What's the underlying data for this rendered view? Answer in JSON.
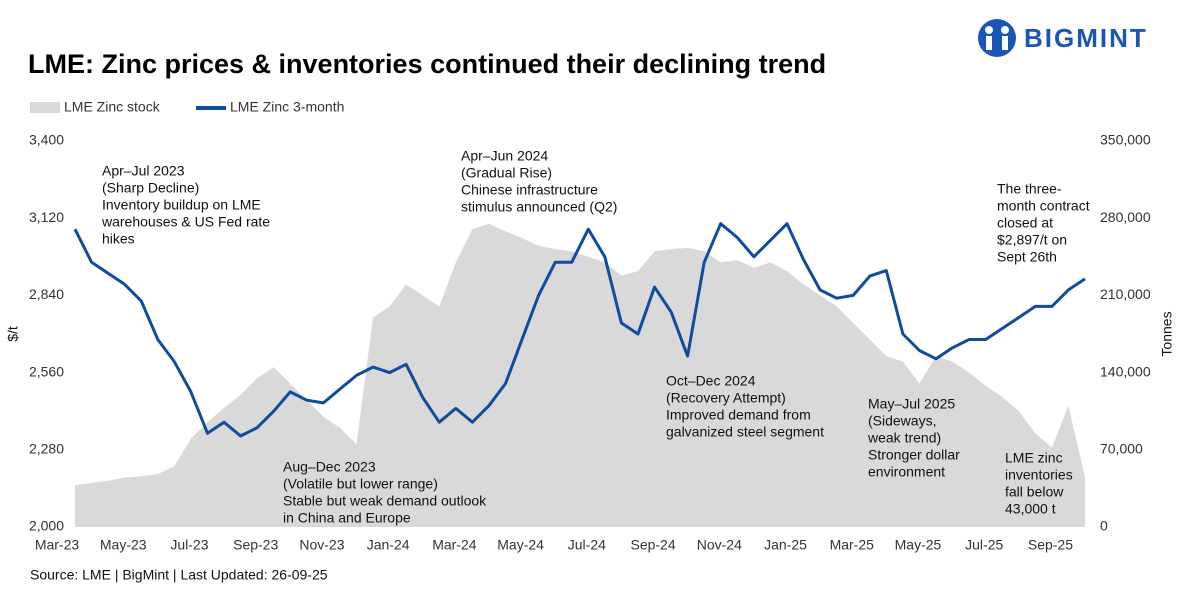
{
  "logo": "BIGMINT",
  "chart_data": {
    "type": "line",
    "title": "LME: Zinc prices & inventories continued their declining trend",
    "source": "Source: LME | BigMint | Last Updated: 26-09-25",
    "y_label": "$/t",
    "y2_label": "Tonnes",
    "categories": [
      "Mar-23",
      null,
      null,
      null,
      "May-23",
      null,
      null,
      null,
      "Jul-23",
      null,
      null,
      null,
      "Sep-23",
      null,
      null,
      null,
      "Nov-23",
      null,
      null,
      null,
      "Jan-24",
      null,
      null,
      null,
      "Mar-24",
      null,
      null,
      null,
      "May-24",
      null,
      null,
      null,
      "Jul-24",
      null,
      null,
      null,
      "Sep-24",
      null,
      null,
      null,
      "Nov-24",
      null,
      null,
      null,
      "Jan-25",
      null,
      null,
      null,
      "Mar-25",
      null,
      null,
      null,
      "May-25",
      null,
      null,
      null,
      "Jul-25",
      null,
      null,
      null,
      "Sep-25",
      null
    ],
    "series": [
      {
        "name": "LME Zinc stock",
        "type": "area",
        "axis": "y2",
        "color": "#d9d9d9",
        "values": [
          38000,
          40000,
          42000,
          45000,
          46000,
          48000,
          55000,
          80000,
          95000,
          108000,
          120000,
          135000,
          145000,
          130000,
          115000,
          100000,
          90000,
          75000,
          190000,
          200000,
          220000,
          210000,
          200000,
          240000,
          270000,
          275000,
          268000,
          262000,
          255000,
          252000,
          250000,
          245000,
          240000,
          228000,
          232000,
          250000,
          252000,
          253000,
          250000,
          240000,
          242000,
          235000,
          240000,
          232000,
          220000,
          210000,
          200000,
          185000,
          170000,
          155000,
          150000,
          130000,
          155000,
          150000,
          140000,
          128000,
          118000,
          105000,
          85000,
          72000,
          110000,
          45000
        ]
      },
      {
        "name": "LME Zinc 3-month",
        "type": "line",
        "axis": "y",
        "color": "#0f4c9c",
        "values": [
          3080,
          2960,
          2920,
          2880,
          2820,
          2680,
          2600,
          2490,
          2340,
          2380,
          2330,
          2360,
          2420,
          2490,
          2460,
          2450,
          2500,
          2550,
          2580,
          2560,
          2590,
          2470,
          2380,
          2430,
          2380,
          2440,
          2520,
          2680,
          2840,
          2960,
          2960,
          3080,
          2980,
          2740,
          2700,
          2870,
          2780,
          2620,
          2960,
          3100,
          3050,
          2980,
          3040,
          3100,
          2970,
          2860,
          2830,
          2840,
          2910,
          2930,
          2700,
          2640,
          2610,
          2650,
          2680,
          2680,
          2720,
          2760,
          2800,
          2800,
          2860,
          2900
        ]
      }
    ],
    "ylim": [
      2000,
      3400
    ],
    "yticks": [
      {
        "value": 2000,
        "label": "2,000"
      },
      {
        "value": 2280,
        "label": "2,280"
      },
      {
        "value": 2560,
        "label": "2,560"
      },
      {
        "value": 2840,
        "label": "2,840"
      },
      {
        "value": 3120,
        "label": "3,120"
      },
      {
        "value": 3400,
        "label": "3,400"
      }
    ],
    "y2lim": [
      0,
      350000
    ],
    "y2ticks": [
      0,
      {
        "value": 70000,
        "label": "70,000"
      },
      {
        "value": 140000,
        "label": "140,000"
      },
      {
        "value": 210000,
        "label": "210,000"
      },
      {
        "value": 280000,
        "label": "280,000"
      },
      {
        "value": 350000,
        "label": "350,000"
      }
    ],
    "legend": "top-left",
    "annotations": [
      {
        "lines": [
          "Apr–Jul 2023",
          " (Sharp Decline)",
          "Inventory buildup on LME",
          "warehouses & US Fed rate",
          "hikes"
        ]
      },
      {
        "lines": [
          "Aug–Dec 2023",
          "(Volatile but lower range)",
          "Stable but weak demand outlook",
          "in China and Europe"
        ]
      },
      {
        "lines": [
          "Apr–Jun 2024",
          "(Gradual Rise)",
          "Chinese infrastructure",
          "stimulus announced (Q2)"
        ]
      },
      {
        "lines": [
          "Oct–Dec 2024",
          "(Recovery Attempt)",
          "Improved demand from",
          "galvanized steel segment"
        ]
      },
      {
        "lines": [
          "May–Jul 2025",
          "(Sideways,",
          "weak trend)",
          "Stronger dollar",
          "environment"
        ]
      },
      {
        "lines": [
          "The three-",
          "month contract",
          "closed at",
          "$2,897/t on",
          "Sept 26th"
        ]
      },
      {
        "lines": [
          "LME zinc",
          "inventories",
          "fall below",
          "43,000 t"
        ]
      }
    ]
  }
}
